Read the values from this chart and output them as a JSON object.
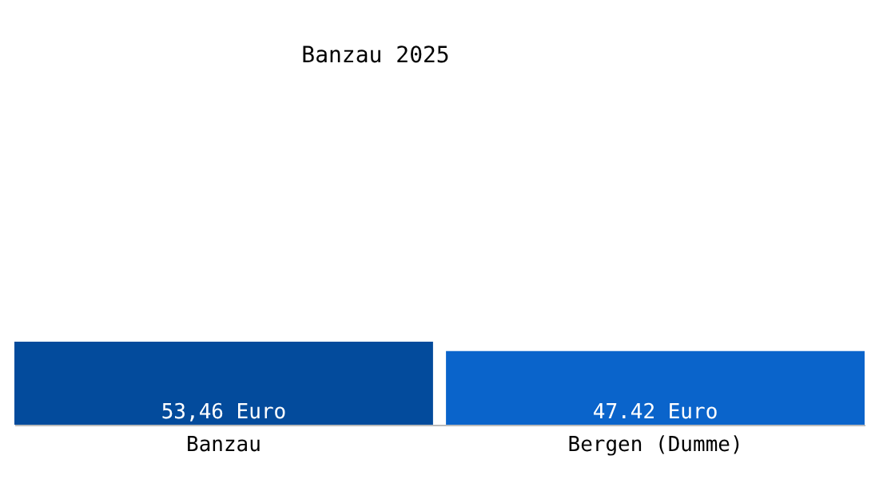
{
  "chart_data": {
    "type": "bar",
    "title": "Banzau 2025",
    "categories": [
      "Banzau",
      "Bergen (Dumme)"
    ],
    "values": [
      53.46,
      47.42
    ],
    "colors": [
      "#034b9c",
      "#0a64cb"
    ],
    "value_labels": [
      "53,46 Euro",
      "47.42 Euro"
    ],
    "tick_labels": "x",
    "grid": false
  }
}
